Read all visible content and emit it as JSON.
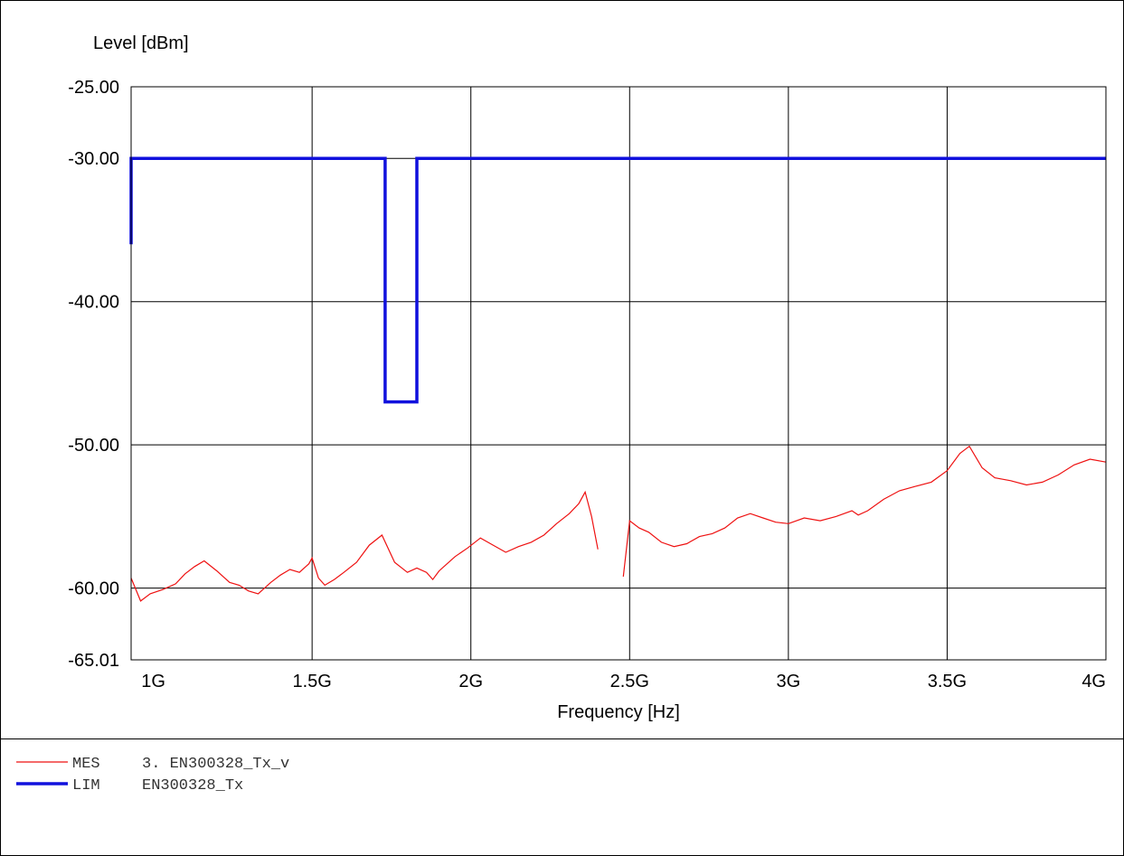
{
  "chart_data": {
    "type": "line",
    "ylabel": "Level [dBm]",
    "xlabel": "Frequency [Hz]",
    "xlim": [
      930000000,
      4000000000
    ],
    "ylim": [
      -65.01,
      -25.0
    ],
    "y_ticks": [
      {
        "value": -25.0,
        "label": "-25.00"
      },
      {
        "value": -30.0,
        "label": "-30.00"
      },
      {
        "value": -40.0,
        "label": "-40.00"
      },
      {
        "value": -50.0,
        "label": "-50.00"
      },
      {
        "value": -60.0,
        "label": "-60.00"
      },
      {
        "value": -65.01,
        "label": "-65.01"
      }
    ],
    "x_ticks": [
      {
        "value": 1000000000,
        "label": "1G"
      },
      {
        "value": 1500000000,
        "label": "1.5G"
      },
      {
        "value": 2000000000,
        "label": "2G"
      },
      {
        "value": 2500000000,
        "label": "2.5G"
      },
      {
        "value": 3000000000,
        "label": "3G"
      },
      {
        "value": 3500000000,
        "label": "3.5G"
      },
      {
        "value": 4000000000,
        "label": "4G"
      }
    ],
    "grid": true,
    "series": [
      {
        "name": "MES",
        "color": "#ee1111",
        "x": [
          930000000,
          960000000,
          990000000,
          1030000000,
          1070000000,
          1100000000,
          1130000000,
          1160000000,
          1200000000,
          1240000000,
          1270000000,
          1300000000,
          1330000000,
          1370000000,
          1400000000,
          1430000000,
          1460000000,
          1490000000,
          1500000000,
          1520000000,
          1540000000,
          1570000000,
          1600000000,
          1640000000,
          1680000000,
          1720000000,
          1760000000,
          1800000000,
          1830000000,
          1860000000,
          1880000000,
          1900000000,
          1920000000,
          1950000000,
          1990000000,
          2030000000,
          2070000000,
          2110000000,
          2150000000,
          2190000000,
          2230000000,
          2270000000,
          2310000000,
          2340000000,
          2360000000,
          2380000000,
          2400000000,
          null,
          2480000000,
          2500000000,
          2530000000,
          2560000000,
          2600000000,
          2640000000,
          2680000000,
          2720000000,
          2760000000,
          2800000000,
          2840000000,
          2880000000,
          2920000000,
          2960000000,
          3000000000,
          3050000000,
          3100000000,
          3150000000,
          3200000000,
          3220000000,
          3250000000,
          3300000000,
          3350000000,
          3400000000,
          3450000000,
          3500000000,
          3540000000,
          3570000000,
          3610000000,
          3650000000,
          3700000000,
          3750000000,
          3800000000,
          3850000000,
          3900000000,
          3950000000,
          4000000000
        ],
        "y": [
          -59.3,
          -60.9,
          -60.4,
          -60.1,
          -59.7,
          -59.0,
          -58.5,
          -58.1,
          -58.8,
          -59.6,
          -59.8,
          -60.2,
          -60.4,
          -59.6,
          -59.1,
          -58.7,
          -58.9,
          -58.3,
          -57.9,
          -59.3,
          -59.8,
          -59.4,
          -58.9,
          -58.2,
          -57.0,
          -56.3,
          -58.2,
          -58.9,
          -58.6,
          -58.9,
          -59.4,
          -58.8,
          -58.4,
          -57.8,
          -57.2,
          -56.5,
          -57.0,
          -57.5,
          -57.1,
          -56.8,
          -56.3,
          -55.5,
          -54.8,
          -54.1,
          -53.3,
          -55.0,
          -57.3,
          null,
          -59.2,
          -55.3,
          -55.8,
          -56.1,
          -56.8,
          -57.1,
          -56.9,
          -56.4,
          -56.2,
          -55.8,
          -55.1,
          -54.8,
          -55.1,
          -55.4,
          -55.5,
          -55.1,
          -55.3,
          -55.0,
          -54.6,
          -54.9,
          -54.6,
          -53.8,
          -53.2,
          -52.9,
          -52.6,
          -51.8,
          -50.6,
          -50.1,
          -51.6,
          -52.3,
          -52.5,
          -52.8,
          -52.6,
          -52.1,
          -51.4,
          -51.0,
          -51.2
        ]
      },
      {
        "name": "LIM",
        "color": "#1111dd",
        "x": [
          930000000,
          930000000,
          1730000000,
          1730000000,
          1830000000,
          1830000000,
          4000000000
        ],
        "y": [
          -36.0,
          -30.0,
          -30.0,
          -47.0,
          -47.0,
          -30.0,
          -30.0
        ]
      }
    ]
  },
  "legend": {
    "entries": [
      {
        "tag": "MES",
        "text": "3. EN300328_Tx_v",
        "color": "#ee1111",
        "thickness": 1
      },
      {
        "tag": "LIM",
        "text": "EN300328_Tx",
        "color": "#1111dd",
        "thickness": 3
      }
    ]
  }
}
